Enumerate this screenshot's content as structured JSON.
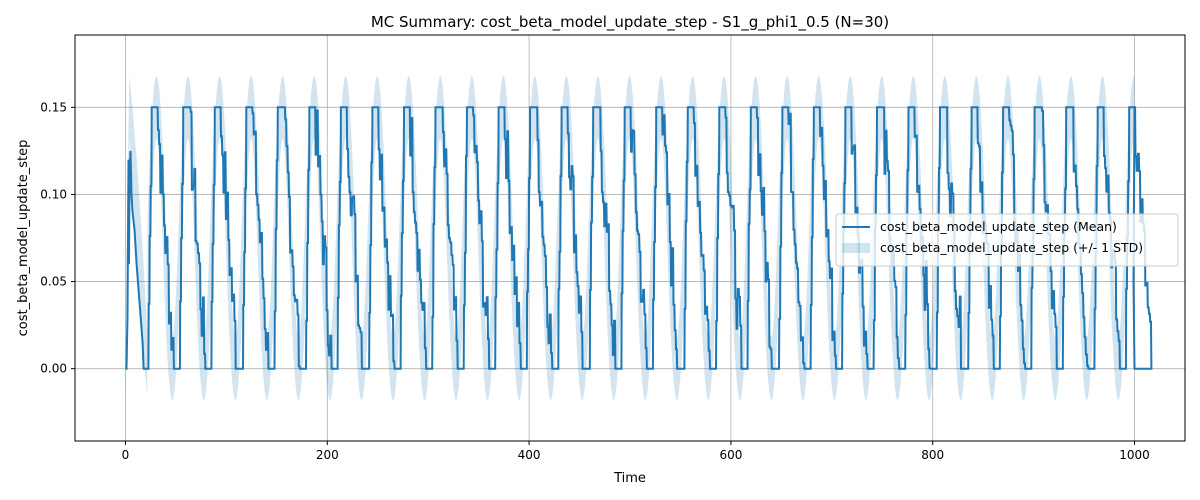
{
  "chart_data": {
    "type": "line",
    "title": "MC Summary: cost_beta_model_update_step - S1_g_phi1_0.5 (N=30)",
    "xlabel": "Time",
    "ylabel": "cost_beta_model_update_step",
    "xlim": [
      -50,
      1050
    ],
    "ylim": [
      -0.0415,
      0.1915
    ],
    "xticks": [
      0,
      200,
      400,
      600,
      800,
      1000
    ],
    "xtick_labels": [
      "0",
      "200",
      "400",
      "600",
      "800",
      "1000"
    ],
    "yticks": [
      0.0,
      0.05,
      0.1,
      0.15
    ],
    "ytick_labels": [
      "0.00",
      "0.05",
      "0.10",
      "0.15"
    ],
    "grid": true,
    "legend_placement": "center-right",
    "colors": {
      "mean": "#1f77b4",
      "band": "#1f77b4"
    },
    "series": [
      {
        "name": "cost_beta_model_update_step (Mean)",
        "kind": "line",
        "period": 31.25,
        "x": [
          0,
          2,
          3,
          4,
          5,
          6,
          8,
          10,
          12,
          14,
          16,
          18,
          20,
          22,
          24,
          26,
          28,
          31.25,
          39,
          47,
          53,
          55,
          1000
        ],
        "y": [
          0.0,
          0.03,
          0.12,
          0.06,
          0.125,
          0.1,
          0.085,
          0.07,
          0.055,
          0.04,
          0.02,
          0.0,
          0.0,
          0.03,
          0.13,
          0.15,
          0.15,
          0.15,
          0.1,
          0.04,
          0.0,
          0.0,
          0.15
        ],
        "cycle_shape": {
          "low": 0.0,
          "high": 0.15,
          "rise_duration": 4,
          "plateau_duration": 5,
          "decay_duration": 17,
          "zero_duration": 5.25
        }
      },
      {
        "name": "cost_beta_model_update_step (+/- 1 STD)",
        "kind": "band",
        "peak_upper": 0.18,
        "trough_lower": -0.03,
        "alpha": 0.2
      }
    ]
  }
}
